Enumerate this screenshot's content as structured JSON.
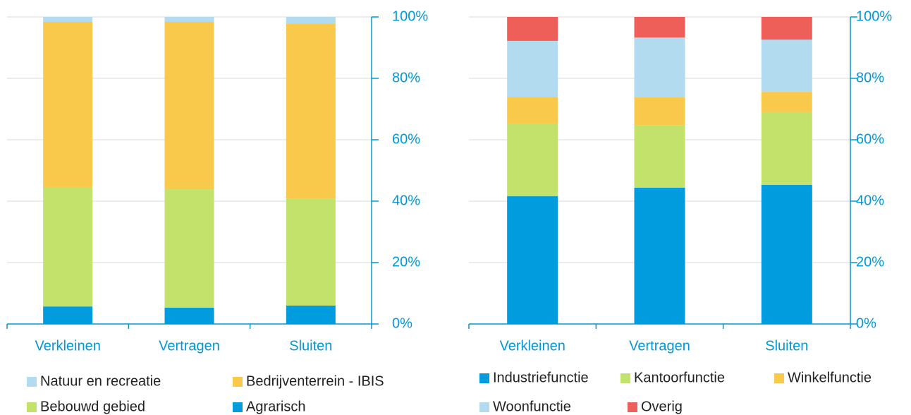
{
  "chart_data": [
    {
      "type": "stacked_bar",
      "categories": [
        "Verkleinen",
        "Vertragen",
        "Sluiten"
      ],
      "series": [
        {
          "name": "Agrarisch",
          "color": "#009cde",
          "values": [
            5.7,
            5.3,
            6.0
          ]
        },
        {
          "name": "Bebouwd gebied",
          "color": "#c3e26c",
          "values": [
            38.9,
            38.6,
            34.9
          ]
        },
        {
          "name": "Bedrijventerrein - IBIS",
          "color": "#f8c94a",
          "values": [
            53.8,
            54.5,
            57.0
          ]
        },
        {
          "name": "Natuur en recreatie",
          "color": "#b2dbf0",
          "values": [
            1.6,
            1.6,
            2.1
          ]
        }
      ],
      "ylim": [
        0,
        100
      ],
      "yticks": [
        {
          "value": 0,
          "label": "0%"
        },
        {
          "value": 20,
          "label": "20%"
        },
        {
          "value": 40,
          "label": "40%"
        },
        {
          "value": 60,
          "label": "60%"
        },
        {
          "value": 80,
          "label": "80%"
        },
        {
          "value": 100,
          "label": "100%"
        }
      ],
      "grid": true
    },
    {
      "type": "stacked_bar",
      "categories": [
        "Verkleinen",
        "Vertragen",
        "Sluiten"
      ],
      "series": [
        {
          "name": "Industriefunctie",
          "color": "#009cde",
          "values": [
            41.6,
            44.4,
            45.3
          ]
        },
        {
          "name": "Kantoorfunctie",
          "color": "#c3e26c",
          "values": [
            23.7,
            20.4,
            23.7
          ]
        },
        {
          "name": "Winkelfunctie",
          "color": "#f8c94a",
          "values": [
            8.7,
            9.0,
            6.6
          ]
        },
        {
          "name": "Woonfunctie",
          "color": "#b2dbf0",
          "values": [
            18.2,
            19.5,
            17.0
          ]
        },
        {
          "name": "Overig",
          "color": "#ef5f5a",
          "values": [
            7.8,
            6.7,
            7.4
          ]
        }
      ],
      "ylim": [
        0,
        100
      ],
      "yticks": [
        {
          "value": 0,
          "label": "0%"
        },
        {
          "value": 20,
          "label": "20%"
        },
        {
          "value": 40,
          "label": "40%"
        },
        {
          "value": 60,
          "label": "60%"
        },
        {
          "value": 80,
          "label": "80%"
        },
        {
          "value": 100,
          "label": "100%"
        }
      ],
      "grid": true
    }
  ]
}
